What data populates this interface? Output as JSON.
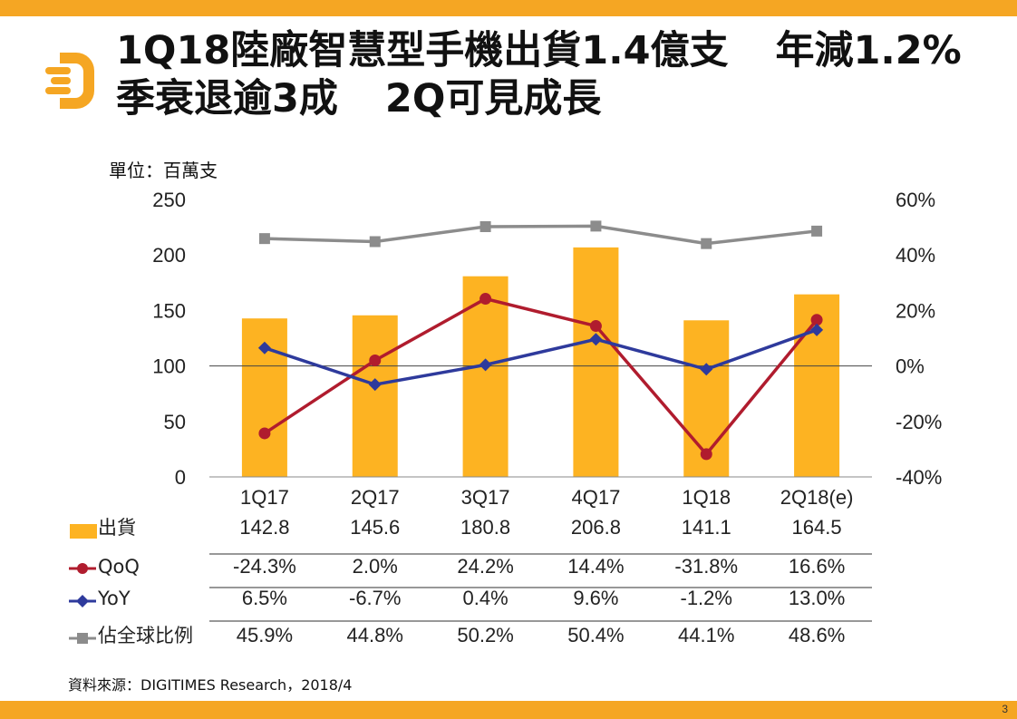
{
  "title_line1": "1Q18陸廠智慧型手機出貨1.4億支",
  "title_line1b": "年減1.2%",
  "title_line2": "季衰退逾3成",
  "title_line2b": "2Q可見成長",
  "unit_label": "單位：百萬支",
  "source": "資料來源：DIGITIMES Research，2018/4",
  "page_number": "3",
  "colors": {
    "accent": "#f5a623",
    "bar": "#fdb322",
    "qoq": "#b01c2e",
    "yoy": "#2e3a9c",
    "share": "#8c8c8c"
  },
  "chart_data": {
    "type": "bar",
    "categories": [
      "1Q17",
      "2Q17",
      "3Q17",
      "4Q17",
      "1Q18",
      "2Q18(e)"
    ],
    "y_left": {
      "ylim": [
        0,
        250
      ],
      "ticks": [
        "0",
        "50",
        "100",
        "150",
        "200",
        "250"
      ],
      "tick_values": [
        0,
        50,
        100,
        150,
        200,
        250
      ]
    },
    "y_right": {
      "ylim": [
        -40,
        60
      ],
      "ticks": [
        "-40%",
        "-20%",
        "0%",
        "20%",
        "40%",
        "60%"
      ],
      "tick_values": [
        -40,
        -20,
        0,
        20,
        40,
        60
      ]
    },
    "series": [
      {
        "name": "出貨",
        "type": "bar",
        "axis": "left",
        "values": [
          142.8,
          145.6,
          180.8,
          206.8,
          141.1,
          164.5
        ],
        "labels": [
          "142.8",
          "145.6",
          "180.8",
          "206.8",
          "141.1",
          "164.5"
        ]
      },
      {
        "name": "QoQ",
        "type": "line",
        "marker": "circle",
        "axis": "right",
        "values": [
          -24.3,
          2.0,
          24.2,
          14.4,
          -31.8,
          16.6
        ],
        "labels": [
          "-24.3%",
          "2.0%",
          "24.2%",
          "14.4%",
          "-31.8%",
          "16.6%"
        ]
      },
      {
        "name": "YoY",
        "type": "line",
        "marker": "diamond",
        "axis": "right",
        "values": [
          6.5,
          -6.7,
          0.4,
          9.6,
          -1.2,
          13.0
        ],
        "labels": [
          "6.5%",
          "-6.7%",
          "0.4%",
          "9.6%",
          "-1.2%",
          "13.0%"
        ]
      },
      {
        "name": "佔全球比例",
        "type": "line",
        "marker": "square",
        "axis": "right",
        "values": [
          45.9,
          44.8,
          50.2,
          50.4,
          44.1,
          48.6
        ],
        "labels": [
          "45.9%",
          "44.8%",
          "50.2%",
          "50.4%",
          "44.1%",
          "48.6%"
        ]
      }
    ],
    "legend": "data-table"
  }
}
